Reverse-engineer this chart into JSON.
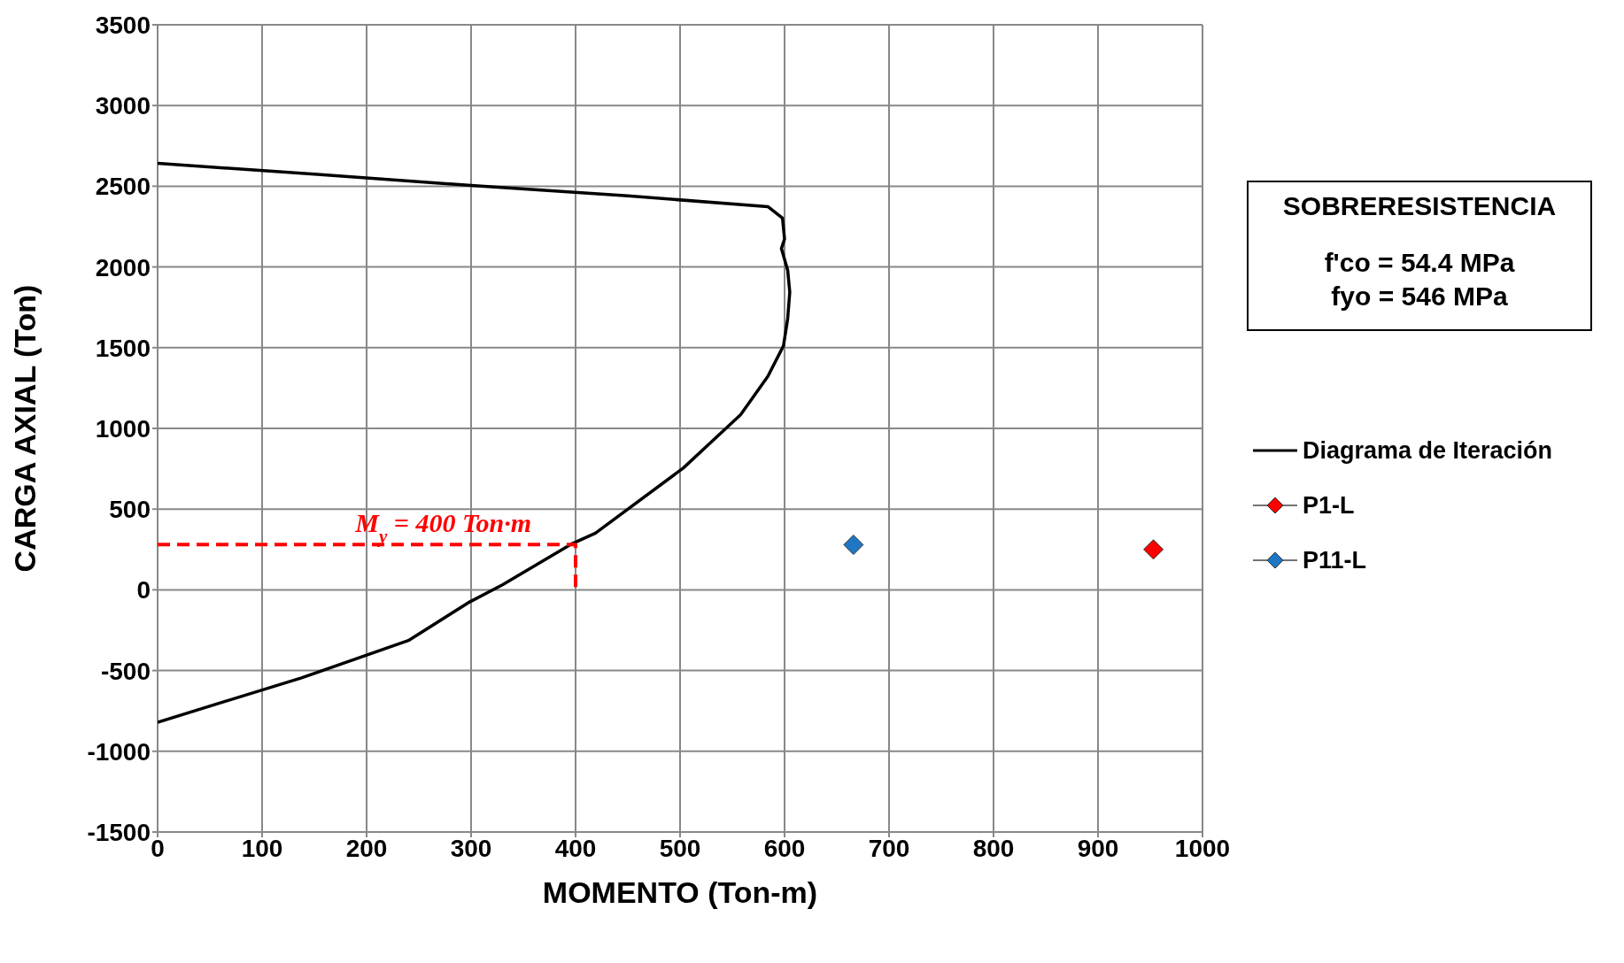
{
  "chart_data": {
    "type": "line",
    "xlabel": "MOMENTO (Ton-m)",
    "ylabel": "CARGA AXIAL  (Ton)",
    "xlim": [
      0,
      1000
    ],
    "xticks": [
      0,
      100,
      200,
      300,
      400,
      500,
      600,
      700,
      800,
      900,
      1000
    ],
    "ylim": [
      -1500,
      3500
    ],
    "yticks": [
      -1500,
      -1000,
      -500,
      0,
      500,
      1000,
      1500,
      2000,
      2500,
      3000,
      3500
    ],
    "grid": true,
    "legend": "right",
    "series": [
      {
        "name": "Diagrama de Iteración",
        "color": "#000000",
        "marker": "none",
        "line_style": "solid",
        "x": [
          0,
          150,
          300,
          450,
          584,
          598,
          600,
          597,
          603,
          605,
          603,
          599,
          584,
          558,
          503,
          419,
          397,
          330,
          297,
          240,
          137,
          64,
          0
        ],
        "values": [
          2642,
          2575,
          2505,
          2440,
          2374,
          2303,
          2173,
          2114,
          1980,
          1844,
          1680,
          1512,
          1322,
          1085,
          754,
          351,
          287,
          31,
          -81,
          -314,
          -547,
          -692,
          -820
        ]
      },
      {
        "color": "#ff0000",
        "marker": "none",
        "line_style": "dashed",
        "x": [
          0,
          400,
          400
        ],
        "values": [
          280,
          280,
          0
        ]
      },
      {
        "name": "P1-L",
        "type": "scatter",
        "color": "#ff0000",
        "marker": "diamond",
        "x": [
          953
        ],
        "values": [
          250
        ]
      },
      {
        "name": "P11-L",
        "type": "scatter",
        "color": "#1f77c4",
        "marker": "diamond",
        "x": [
          666
        ],
        "values": [
          279
        ]
      }
    ],
    "annotations": [
      "SOBRERESISTENCIA",
      "f'co = 54.4 MPa",
      "fyo = 546 MPa",
      {
        "text": "M$_{y}$ = 400 Ton·m",
        "x": 400,
        "y": 280
      }
    ]
  }
}
